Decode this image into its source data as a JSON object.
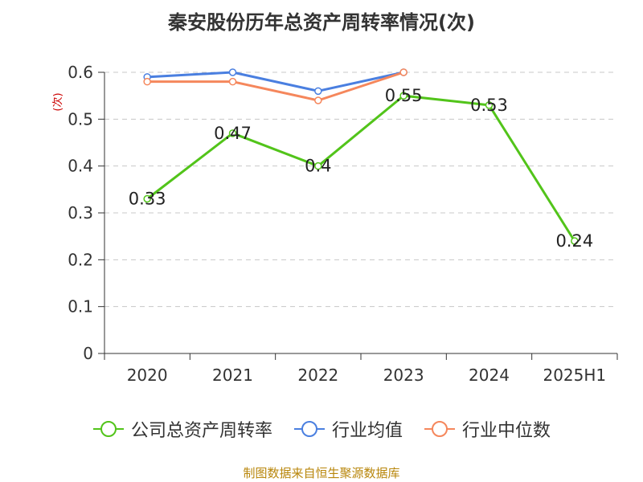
{
  "chart_data": {
    "type": "line",
    "title": "秦安股份历年总资产周转率情况(次)",
    "ylabel": "(次)",
    "categories": [
      "2020",
      "2021",
      "2022",
      "2023",
      "2024",
      "2025H1"
    ],
    "ylim": [
      0,
      0.6
    ],
    "yticks": [
      "0",
      "0.1",
      "0.2",
      "0.3",
      "0.4",
      "0.5",
      "0.6"
    ],
    "grid": true,
    "legend_position": "bottom",
    "series": [
      {
        "name": "公司总资产周转率",
        "color": "#52c41a",
        "values": [
          0.33,
          0.47,
          0.4,
          0.55,
          0.53,
          0.24
        ],
        "labels": [
          "0.33",
          "0.47",
          "0.4",
          "0.55",
          "0.53",
          "0.24"
        ]
      },
      {
        "name": "行业均值",
        "color": "#4a7fe0",
        "values": [
          0.59,
          0.6,
          0.56,
          0.6,
          null,
          null
        ]
      },
      {
        "name": "行业中位数",
        "color": "#f5875c",
        "values": [
          0.58,
          0.58,
          0.54,
          0.6,
          null,
          null
        ]
      }
    ]
  },
  "footer": "制图数据来自恒生聚源数据库"
}
